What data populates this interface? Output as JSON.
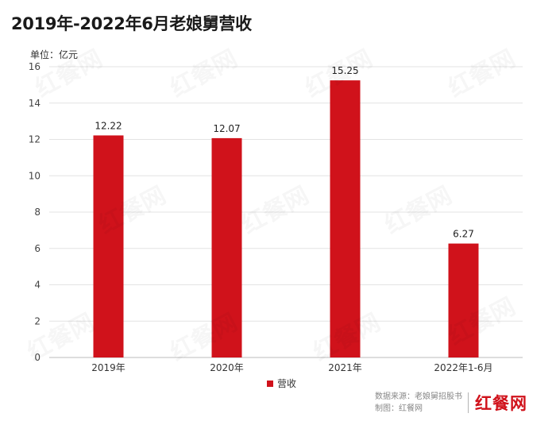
{
  "title": "2019年-2022年6月老娘舅营收",
  "unit_label": "单位：亿元",
  "colors": {
    "bar": "#d0121b",
    "grid": "#e3e3e3",
    "axis": "#bbbbbb",
    "brand": "#d0121b"
  },
  "chart_data": {
    "type": "bar",
    "categories": [
      "2019年",
      "2020年",
      "2021年",
      "2022年1-6月"
    ],
    "series": [
      {
        "name": "营收",
        "values": [
          12.22,
          12.07,
          15.25,
          6.27
        ]
      }
    ],
    "value_labels": [
      "12.22",
      "12.07",
      "15.25",
      "6.27"
    ],
    "ylim": [
      0,
      16
    ],
    "yticks": [
      0,
      2,
      4,
      6,
      8,
      10,
      12,
      14,
      16
    ],
    "grid": true,
    "legend": "bottom-center"
  },
  "footer": {
    "source": "数据来源：老娘舅招股书",
    "maker": "制图：红餐网",
    "brand": "红餐网"
  },
  "watermark": "红餐网"
}
